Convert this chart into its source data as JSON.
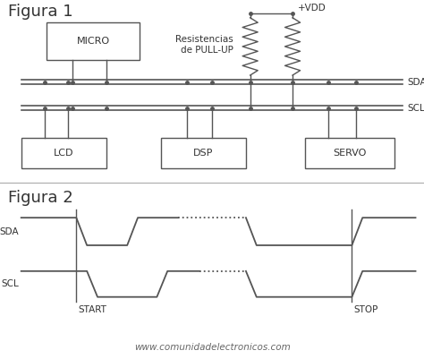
{
  "fig1_title": "Figura 1",
  "fig2_title": "Figura 2",
  "website": "www.comunidadelectronicos.com",
  "bg_color": "#ffffff",
  "line_color": "#555555",
  "box_color": "#ffffff",
  "box_edge": "#555555",
  "text_color": "#333333"
}
